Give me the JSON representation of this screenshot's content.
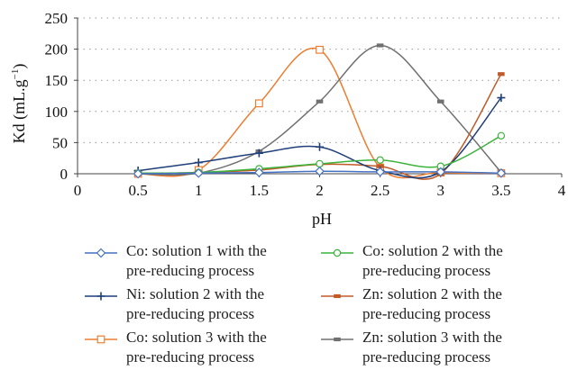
{
  "chart_data": {
    "type": "line",
    "xlabel": "pH",
    "ylabel": "Kd (mL.g",
    "ylabel_sup": "−1",
    "ylabel_close": ")",
    "xlim": [
      0,
      4
    ],
    "ylim": [
      0,
      250
    ],
    "xticks": [
      "0",
      "0.5",
      "1",
      "1.5",
      "2",
      "2.5",
      "3",
      "3.5",
      "4"
    ],
    "yticks": [
      "0",
      "50",
      "100",
      "150",
      "200",
      "250"
    ],
    "grid": "horizontal-dotted",
    "legend_position": "bottom",
    "x": [
      0.5,
      1,
      1.5,
      2,
      2.5,
      3,
      3.5
    ],
    "series": [
      {
        "name": "Co: solution 1 with the pre-reducing process",
        "color": "#4472c4",
        "marker": "diamond",
        "values": [
          0,
          1,
          2,
          4,
          3,
          3,
          1
        ]
      },
      {
        "name": "Co: solution 2 with the pre-reducing process",
        "color": "#3cb43c",
        "marker": "circle",
        "values": [
          1,
          2,
          8,
          16,
          22,
          12,
          61
        ]
      },
      {
        "name": "Ni: solution 2 with the pre-reducing process",
        "color": "#1f3f7a",
        "marker": "plus",
        "values": [
          5,
          18,
          33,
          43,
          5,
          3,
          122
        ]
      },
      {
        "name": "Zn: solution 2 with the pre-reducing process",
        "color": "#c05a28",
        "marker": "dash",
        "values": [
          0,
          2,
          6,
          15,
          12,
          0,
          160
        ]
      },
      {
        "name": "Co: solution 3 with the pre-reducing process",
        "color": "#ed7d31",
        "marker": "square",
        "values": [
          0,
          6,
          113,
          199,
          10,
          2,
          1
        ]
      },
      {
        "name": "Zn: solution 3 with the pre-reducing process",
        "color": "#707070",
        "marker": "dash",
        "values": [
          0,
          1,
          36,
          116,
          206,
          116,
          2
        ]
      }
    ]
  },
  "legend": {
    "items": [
      {
        "line1": "Co: solution 1 with the",
        "line2": "pre-reducing process"
      },
      {
        "line1": "Co: solution 2 with the",
        "line2": "pre-reducing process"
      },
      {
        "line1": "Ni: solution 2 with the",
        "line2": "pre-reducing process"
      },
      {
        "line1": "Zn: solution 2 with the",
        "line2": "pre-reducing process"
      },
      {
        "line1": "Co: solution 3 with the",
        "line2": "pre-reducing process"
      },
      {
        "line1": "Zn: solution 3 with the",
        "line2": "pre-reducing process"
      }
    ]
  }
}
